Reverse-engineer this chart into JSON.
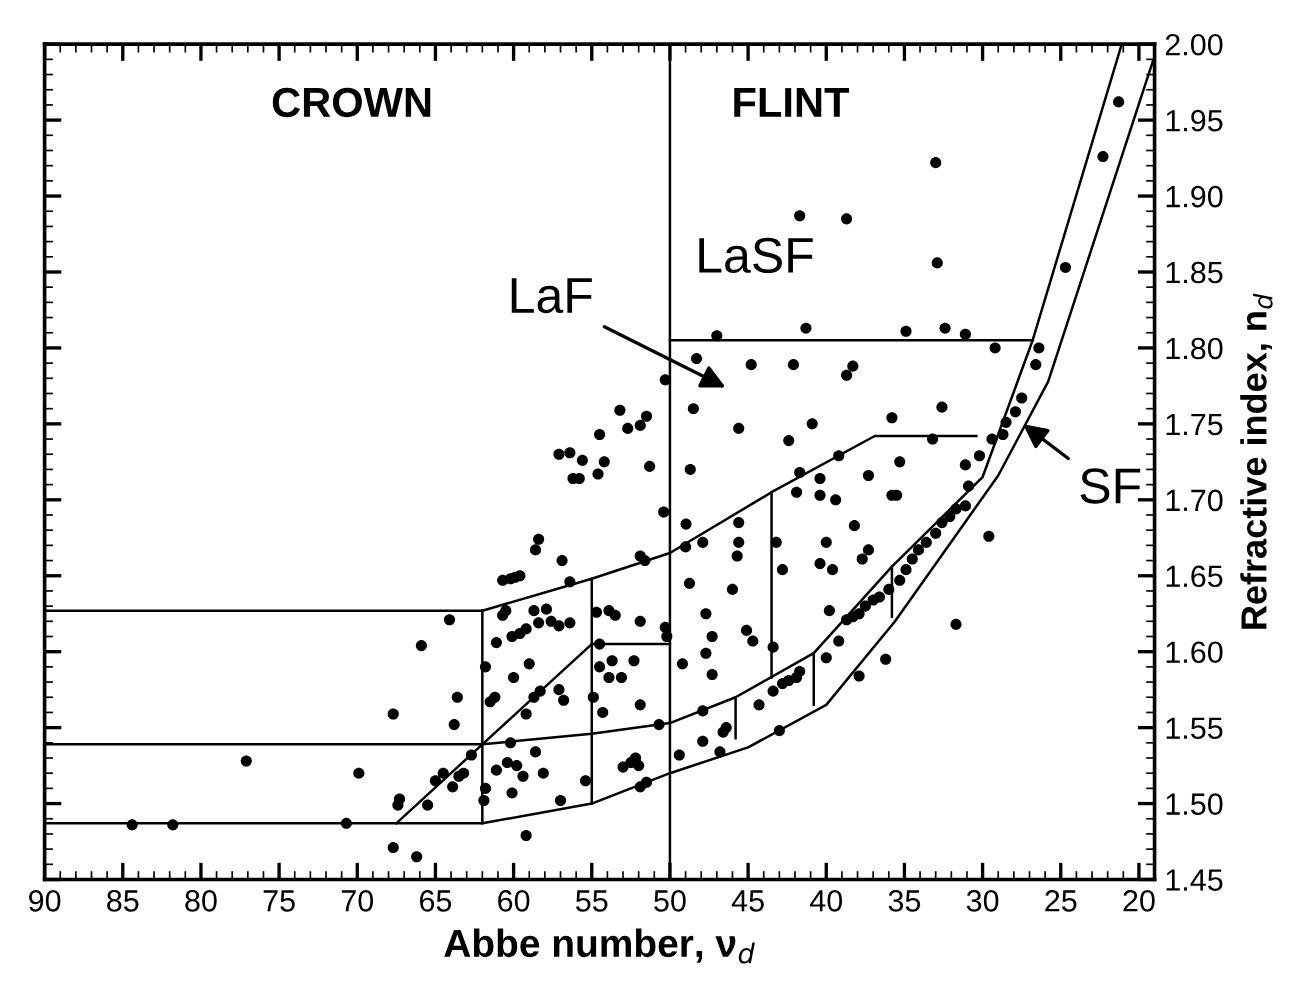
{
  "chart_data": {
    "type": "scatter",
    "xlabel": "Abbe number, ν$_{d}$",
    "ylabel": "Refractive index, n$_{d}$",
    "xlim": [
      90,
      19
    ],
    "ylim": [
      1.45,
      2.0
    ],
    "xticks": [
      90,
      85,
      80,
      75,
      70,
      65,
      60,
      55,
      50,
      45,
      40,
      35,
      30,
      25,
      20
    ],
    "yticks": [
      {
        "value": 1.45,
        "label": "1.45"
      },
      {
        "value": 1.5,
        "label": "1.50"
      },
      {
        "value": 1.55,
        "label": "1.55"
      },
      {
        "value": 1.6,
        "label": "1.60"
      },
      {
        "value": 1.65,
        "label": "1.65"
      },
      {
        "value": 1.7,
        "label": "1.70"
      },
      {
        "value": 1.75,
        "label": "1.75"
      },
      {
        "value": 1.8,
        "label": "1.80"
      },
      {
        "value": 1.85,
        "label": "1.85"
      },
      {
        "value": 1.9,
        "label": "1.90"
      },
      {
        "value": 1.95,
        "label": "1.95"
      },
      {
        "value": 2.0,
        "label": "2.00"
      }
    ],
    "grid": false,
    "legend": false,
    "marker": "circle",
    "ref_lines": [
      {
        "axis": "x",
        "value": 50,
        "color": "#000000",
        "line_style": "solid"
      }
    ],
    "annotations": [
      "CROWN",
      "FLINT",
      "LaSF",
      "LaF",
      {
        "text": "SF",
        "x": 27.7,
        "y": 1.752
      }
    ],
    "series": [
      {
        "color": "#000000",
        "x": [
          84.4,
          81.8,
          77.1,
          70.7,
          69.9,
          67.7,
          67.4,
          67.3,
          67.7,
          66.2,
          65.9,
          65.5,
          64.5,
          65,
          63.5,
          63.2,
          63.9,
          64.1,
          63.6,
          63.8,
          62.7,
          61.9,
          61.8,
          61.1,
          60.4,
          59.8,
          59.4,
          60.1,
          59.2,
          58.6,
          58.1,
          57.0,
          60.2,
          61.5,
          61.2,
          61.8,
          59.2,
          60.0,
          58.7,
          58.3,
          57.1,
          56.8,
          59.0,
          61.1,
          60.7,
          60.5,
          60.1,
          59.6,
          59.2,
          58.7,
          58.4,
          57.9,
          57.6,
          57.1,
          56.4,
          60.7,
          60.2,
          59.6,
          59.9,
          58.6,
          58.4,
          56.9,
          56.4,
          57.1,
          56.4,
          55.6,
          56.2,
          55.8,
          54.2,
          54.5,
          53.2,
          51.5,
          52.7,
          54.6,
          51.3,
          54.7,
          53.9,
          53.5,
          51.9,
          54.5,
          54.5,
          53.9,
          53.1,
          52.3,
          53.7,
          54.9,
          54.3,
          51.9,
          55.4,
          53.0,
          52.5,
          52.2,
          52.0,
          51.9,
          51.9,
          50.4,
          51.6,
          48.97,
          47.9,
          49.0,
          45.6,
          45.6,
          45.7,
          48.75,
          46.0,
          47.7,
          45.1,
          47.3,
          47.7,
          49.2,
          47.3,
          44.7,
          50.3,
          50.2,
          43.2,
          42.8,
          43.4,
          41.9,
          40.4,
          39.4,
          38.2,
          40.0,
          40.4,
          39.6,
          37.7,
          37.3,
          35.8,
          35.5,
          39.8,
          44.3,
          43.4,
          42.8,
          42.4,
          41.9,
          41.7,
          40.0,
          39.2,
          38.7,
          38.3,
          37.9,
          37.5,
          37.0,
          36.6,
          36.0,
          35.3,
          34.9,
          34.5,
          34.1,
          33.6,
          33.0,
          32.6,
          32.1,
          31.7,
          31.1,
          30.9,
          31.7,
          29.6,
          37.9,
          36.2,
          47.9,
          46.6,
          46.4,
          46.8,
          49.4,
          47.9,
          50.7,
          51.5,
          43.0,
          21.3,
          22.3,
          24.7,
          33.0,
          41.7,
          38.7,
          32.9,
          47.0,
          41.3,
          34.9,
          32.4,
          31.1,
          29.2,
          48.3,
          44.8,
          42.1,
          38.3,
          38.7,
          50.3,
          48.5,
          45.6,
          40.9,
          42.4,
          35.8,
          32.6,
          26.4,
          26.6,
          27.5,
          27.9,
          28.5,
          28.7,
          29.4,
          30.2,
          31.1,
          33.2,
          39.2,
          37.3,
          35.3,
          41.7,
          40.4,
          48.7,
          51.9
        ],
        "values": [
          1.486,
          1.486,
          1.528,
          1.487,
          1.52,
          1.559,
          1.499,
          1.503,
          1.471,
          1.465,
          1.604,
          1.499,
          1.52,
          1.515,
          1.518,
          1.52,
          1.511,
          1.621,
          1.57,
          1.552,
          1.532,
          1.502,
          1.51,
          1.522,
          1.527,
          1.525,
          1.518,
          1.507,
          1.479,
          1.534,
          1.52,
          1.502,
          1.54,
          1.567,
          1.57,
          1.59,
          1.559,
          1.583,
          1.57,
          1.574,
          1.575,
          1.568,
          1.592,
          1.606,
          1.624,
          1.627,
          1.61,
          1.612,
          1.615,
          1.627,
          1.619,
          1.628,
          1.62,
          1.617,
          1.619,
          1.647,
          1.648,
          1.65,
          1.649,
          1.667,
          1.674,
          1.66,
          1.646,
          1.73,
          1.731,
          1.726,
          1.714,
          1.714,
          1.725,
          1.743,
          1.759,
          1.755,
          1.747,
          1.717,
          1.722,
          1.626,
          1.627,
          1.624,
          1.62,
          1.605,
          1.59,
          1.583,
          1.583,
          1.594,
          1.594,
          1.57,
          1.56,
          1.565,
          1.515,
          1.524,
          1.527,
          1.53,
          1.525,
          1.511,
          1.663,
          1.692,
          1.66,
          1.684,
          1.672,
          1.669,
          1.685,
          1.672,
          1.663,
          1.645,
          1.641,
          1.625,
          1.614,
          1.61,
          1.599,
          1.592,
          1.585,
          1.607,
          1.616,
          1.61,
          1.672,
          1.654,
          1.603,
          1.705,
          1.703,
          1.7,
          1.683,
          1.672,
          1.658,
          1.654,
          1.661,
          1.667,
          1.703,
          1.703,
          1.627,
          1.565,
          1.574,
          1.579,
          1.581,
          1.583,
          1.587,
          1.596,
          1.607,
          1.621,
          1.623,
          1.625,
          1.63,
          1.634,
          1.636,
          1.641,
          1.647,
          1.654,
          1.661,
          1.667,
          1.672,
          1.678,
          1.685,
          1.689,
          1.694,
          1.696,
          1.709,
          1.618,
          1.676,
          1.584,
          1.595,
          1.561,
          1.547,
          1.55,
          1.534,
          1.532,
          1.541,
          1.552,
          1.514,
          1.548,
          1.962,
          1.926,
          1.853,
          1.922,
          1.887,
          1.885,
          1.856,
          1.808,
          1.813,
          1.811,
          1.813,
          1.809,
          1.8,
          1.793,
          1.789,
          1.789,
          1.788,
          1.782,
          1.779,
          1.76,
          1.747,
          1.75,
          1.739,
          1.754,
          1.761,
          1.8,
          1.789,
          1.767,
          1.758,
          1.751,
          1.743,
          1.74,
          1.729,
          1.723,
          1.74,
          1.729,
          1.716,
          1.725,
          1.718,
          1.714,
          1.72,
          1.749
        ]
      },
      {
        "type": "line",
        "color": "#000000",
        "marker": "none",
        "x": [
          90,
          62,
          55,
          50,
          43.5,
          36.9,
          30.4
        ],
        "values": [
          1.627,
          1.627,
          1.648,
          1.665,
          1.705,
          1.742,
          1.742
        ]
      },
      {
        "type": "line",
        "color": "#000000",
        "marker": "none",
        "x": [
          90,
          62,
          55,
          50,
          45.8,
          40.8,
          35.8,
          30,
          26.8,
          21.1
        ],
        "values": [
          1.539,
          1.539,
          1.546,
          1.553,
          1.57,
          1.599,
          1.656,
          1.715,
          1.805,
          2.0
        ]
      },
      {
        "type": "line",
        "color": "#000000",
        "marker": "none",
        "x": [
          90,
          62,
          55,
          50,
          45,
          40,
          35.6,
          29.0,
          25.8,
          19.1
        ],
        "values": [
          1.487,
          1.487,
          1.5,
          1.52,
          1.537,
          1.565,
          1.62,
          1.716,
          1.778,
          1.989
        ]
      },
      {
        "type": "line",
        "color": "#000000",
        "marker": "none",
        "x": [
          67.5,
          62,
          55,
          50
        ],
        "values": [
          1.487,
          1.539,
          1.605,
          1.605
        ]
      },
      {
        "type": "line",
        "color": "#000000",
        "marker": "none",
        "x": [
          50,
          26.8
        ],
        "values": [
          1.805,
          1.805
        ]
      },
      {
        "type": "line",
        "color": "#000000",
        "marker": "none",
        "x": [
          62,
          62
        ],
        "values": [
          1.487,
          1.627
        ]
      },
      {
        "type": "line",
        "color": "#000000",
        "marker": "none",
        "x": [
          55,
          55
        ],
        "values": [
          1.5,
          1.648
        ]
      },
      {
        "type": "line",
        "color": "#000000",
        "marker": "none",
        "x": [
          43.5,
          43.5
        ],
        "values": [
          1.583,
          1.705
        ]
      },
      {
        "type": "line",
        "color": "#000000",
        "marker": "none",
        "x": [
          45.8,
          45.8
        ],
        "values": [
          1.543,
          1.57
        ]
      },
      {
        "type": "line",
        "color": "#000000",
        "marker": "none",
        "x": [
          40.8,
          40.8
        ],
        "values": [
          1.565,
          1.599
        ]
      },
      {
        "type": "line",
        "color": "#000000",
        "marker": "none",
        "x": [
          35.8,
          35.8
        ],
        "values": [
          1.623,
          1.656
        ]
      }
    ]
  }
}
